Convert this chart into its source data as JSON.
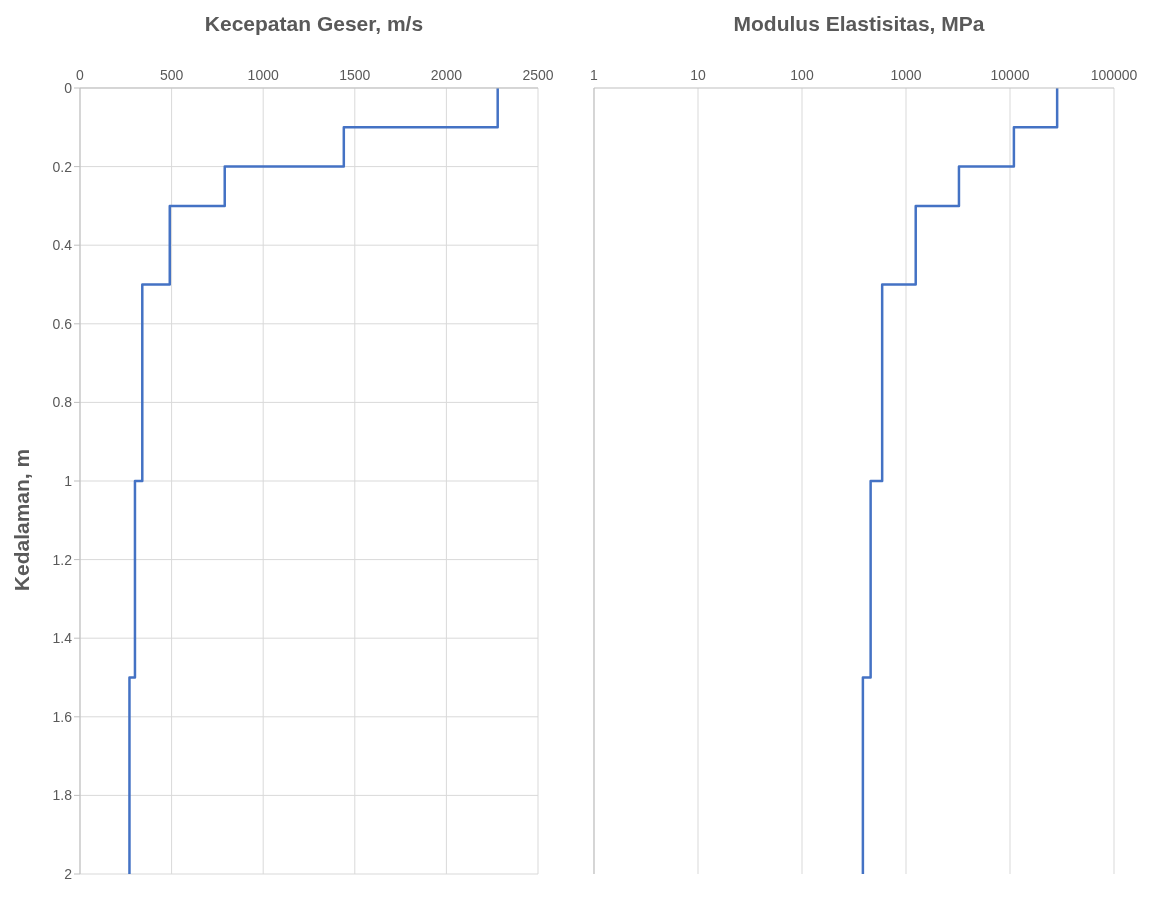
{
  "chart_data": [
    {
      "type": "line",
      "title": "Kecepatan Geser, m/s",
      "ylabel": "Kedalaman, m",
      "xlim": [
        0,
        2500
      ],
      "xticks": [
        0,
        500,
        1000,
        1500,
        2000,
        2500
      ],
      "ylim": [
        2,
        0
      ],
      "yticks": [
        0,
        0.2,
        0.4,
        0.6,
        0.8,
        1,
        1.2,
        1.4,
        1.6,
        1.8,
        2
      ],
      "grid": true,
      "marker": "none",
      "line_style": "solid",
      "series": [
        {
          "color": "#4472c4",
          "x": [
            2280,
            2280,
            1440,
            1440,
            790,
            790,
            490,
            490,
            340,
            340,
            300,
            300,
            270,
            270
          ],
          "values": [
            0,
            0.1,
            0.1,
            0.2,
            0.2,
            0.3,
            0.3,
            0.5,
            0.5,
            1,
            1,
            1.5,
            1.5,
            2
          ]
        }
      ]
    },
    {
      "type": "line",
      "title": "Modulus Elastisitas, MPa",
      "log": "x",
      "xlim": [
        1,
        100000
      ],
      "xticks": [
        1,
        10,
        100,
        1000,
        10000,
        100000
      ],
      "ylim": [
        2,
        0
      ],
      "yticks": [
        0,
        0.2,
        0.4,
        0.6,
        0.8,
        1,
        1.2,
        1.4,
        1.6,
        1.8,
        2
      ],
      "tick_labels": "x",
      "grid": true,
      "marker": "none",
      "line_style": "solid",
      "series": [
        {
          "color": "#4472c4",
          "x": [
            28400,
            28400,
            10900,
            10900,
            3230,
            3230,
            1240,
            1240,
            590,
            590,
            457,
            457,
            385,
            385
          ],
          "values": [
            0,
            0.1,
            0.1,
            0.2,
            0.2,
            0.3,
            0.3,
            0.5,
            0.5,
            1,
            1,
            1.5,
            1.5,
            2
          ]
        }
      ]
    }
  ]
}
